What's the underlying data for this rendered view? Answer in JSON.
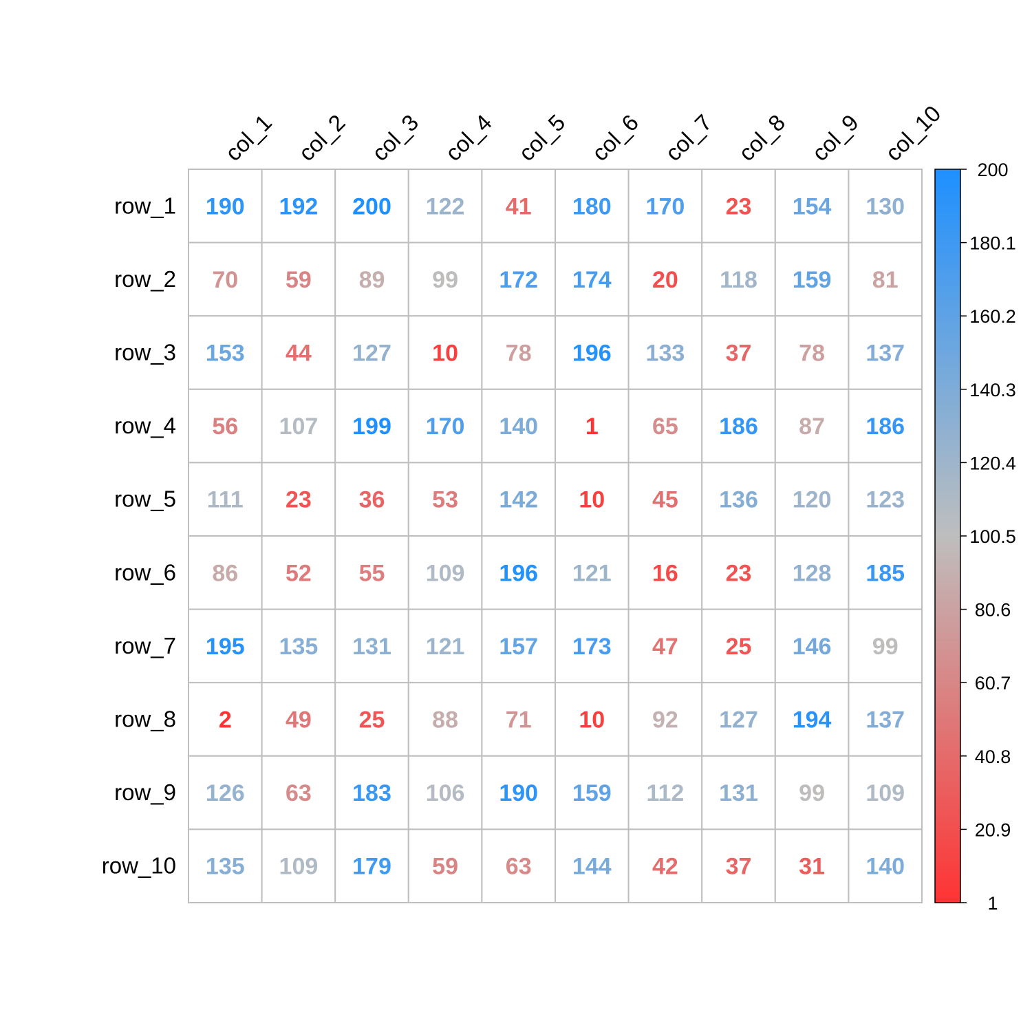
{
  "chart_data": {
    "type": "heatmap",
    "title": "",
    "xlabel": "",
    "ylabel": "",
    "rows": [
      "row_1",
      "row_2",
      "row_3",
      "row_4",
      "row_5",
      "row_6",
      "row_7",
      "row_8",
      "row_9",
      "row_10"
    ],
    "columns": [
      "col_1",
      "col_2",
      "col_3",
      "col_4",
      "col_5",
      "col_6",
      "col_7",
      "col_8",
      "col_9",
      "col_10"
    ],
    "values": [
      [
        190,
        192,
        200,
        122,
        41,
        180,
        170,
        23,
        154,
        130
      ],
      [
        70,
        59,
        89,
        99,
        172,
        174,
        20,
        118,
        159,
        81
      ],
      [
        153,
        44,
        127,
        10,
        78,
        196,
        133,
        37,
        78,
        137
      ],
      [
        56,
        107,
        199,
        170,
        140,
        1,
        65,
        186,
        87,
        186
      ],
      [
        111,
        23,
        36,
        53,
        142,
        10,
        45,
        136,
        120,
        123
      ],
      [
        86,
        52,
        55,
        109,
        196,
        121,
        16,
        23,
        128,
        185
      ],
      [
        195,
        135,
        131,
        121,
        157,
        173,
        47,
        25,
        146,
        99
      ],
      [
        2,
        49,
        25,
        88,
        71,
        10,
        92,
        127,
        194,
        137
      ],
      [
        126,
        63,
        183,
        106,
        190,
        159,
        112,
        131,
        99,
        109
      ],
      [
        135,
        109,
        179,
        59,
        63,
        144,
        42,
        37,
        31,
        140
      ]
    ],
    "value_range": [
      1,
      200
    ],
    "color_scale": {
      "low": "#FF3333",
      "mid": "#BEBEBE",
      "high": "#1E90FF"
    },
    "grid_color": "#BEBEBE",
    "colorbar": {
      "ticks": [
        "1",
        "20.9",
        "40.8",
        "60.7",
        "80.6",
        "100.5",
        "120.4",
        "140.3",
        "160.2",
        "180.1",
        "200"
      ],
      "placement": "right"
    }
  }
}
